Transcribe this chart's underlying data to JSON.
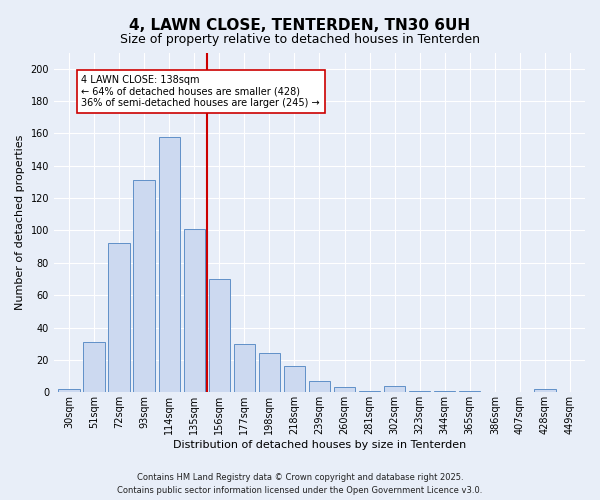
{
  "title": "4, LAWN CLOSE, TENTERDEN, TN30 6UH",
  "subtitle": "Size of property relative to detached houses in Tenterden",
  "xlabel": "Distribution of detached houses by size in Tenterden",
  "ylabel": "Number of detached properties",
  "categories": [
    "30sqm",
    "51sqm",
    "72sqm",
    "93sqm",
    "114sqm",
    "135sqm",
    "156sqm",
    "177sqm",
    "198sqm",
    "218sqm",
    "239sqm",
    "260sqm",
    "281sqm",
    "302sqm",
    "323sqm",
    "344sqm",
    "365sqm",
    "386sqm",
    "407sqm",
    "428sqm",
    "449sqm"
  ],
  "values": [
    2,
    31,
    92,
    131,
    158,
    101,
    70,
    30,
    24,
    16,
    7,
    3,
    1,
    4,
    1,
    1,
    1,
    0,
    0,
    2,
    0
  ],
  "bar_color": "#ccd9f0",
  "bar_edge_color": "#6090c8",
  "vline_color": "#cc0000",
  "annotation_text": "4 LAWN CLOSE: 138sqm\n← 64% of detached houses are smaller (428)\n36% of semi-detached houses are larger (245) →",
  "annotation_box_facecolor": "#ffffff",
  "annotation_box_edgecolor": "#cc0000",
  "ylim": [
    0,
    210
  ],
  "yticks": [
    0,
    20,
    40,
    60,
    80,
    100,
    120,
    140,
    160,
    180,
    200
  ],
  "background_color": "#e8eef8",
  "title_fontsize": 11,
  "subtitle_fontsize": 9,
  "tick_fontsize": 7,
  "ylabel_fontsize": 8,
  "xlabel_fontsize": 8,
  "annotation_fontsize": 7,
  "footer_text": "Contains HM Land Registry data © Crown copyright and database right 2025.\nContains public sector information licensed under the Open Government Licence v3.0."
}
